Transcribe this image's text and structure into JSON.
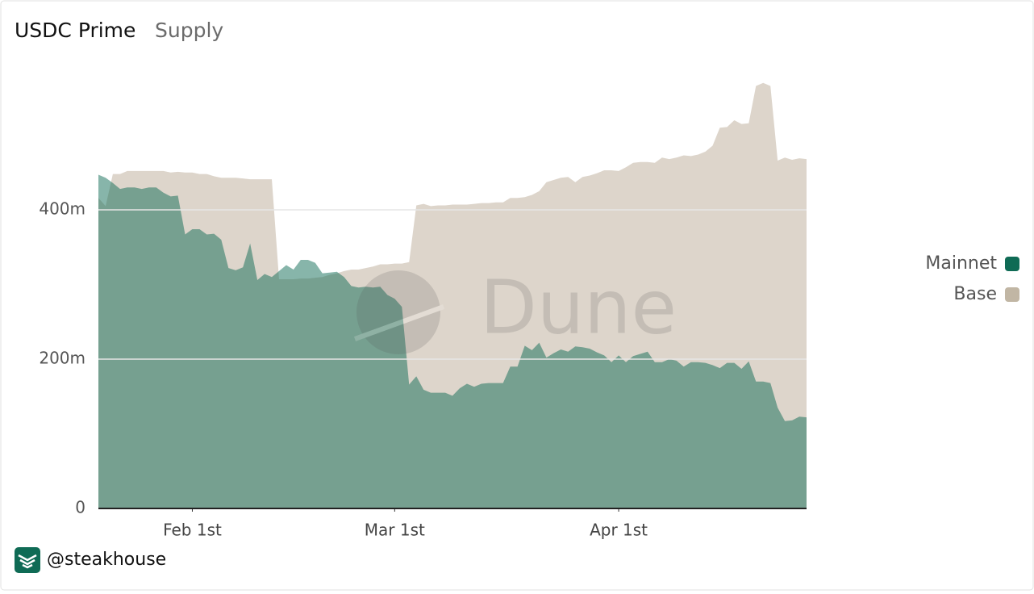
{
  "chart_data": {
    "type": "area",
    "title": "USDC Prime",
    "subtitle": "Supply",
    "watermark": "Dune",
    "footer": "@steakhouse",
    "legend": "right",
    "grid": true,
    "x": [
      "01-19",
      "01-20",
      "01-21",
      "01-22",
      "01-23",
      "01-24",
      "01-25",
      "01-26",
      "01-27",
      "01-28",
      "01-29",
      "01-30",
      "01-31",
      "02-01",
      "02-02",
      "02-03",
      "02-04",
      "02-05",
      "02-06",
      "02-07",
      "02-08",
      "02-09",
      "02-10",
      "02-11",
      "02-12",
      "02-13",
      "02-14",
      "02-15",
      "02-16",
      "02-17",
      "02-18",
      "02-19",
      "02-20",
      "02-21",
      "02-22",
      "02-23",
      "02-24",
      "02-25",
      "02-26",
      "02-27",
      "02-28",
      "03-01",
      "03-02",
      "03-03",
      "03-04",
      "03-05",
      "03-06",
      "03-07",
      "03-08",
      "03-09",
      "03-10",
      "03-11",
      "03-12",
      "03-13",
      "03-14",
      "03-15",
      "03-16",
      "03-17",
      "03-18",
      "03-19",
      "03-20",
      "03-21",
      "03-22",
      "03-23",
      "03-24",
      "03-25",
      "03-26",
      "03-27",
      "03-28",
      "03-29",
      "03-30",
      "03-31",
      "04-01",
      "04-02",
      "04-03",
      "04-04",
      "04-05",
      "04-06",
      "04-07",
      "04-08",
      "04-09",
      "04-10",
      "04-11",
      "04-12",
      "04-13",
      "04-14",
      "04-15",
      "04-16",
      "04-17",
      "04-18",
      "04-19",
      "04-20",
      "04-21",
      "04-22",
      "04-23",
      "04-24",
      "04-25",
      "04-26",
      "04-27"
    ],
    "xticks": [
      {
        "value": "02-01",
        "label": "Feb 1st"
      },
      {
        "value": "03-01",
        "label": "Mar 1st"
      },
      {
        "value": "04-01",
        "label": "Apr 1st"
      }
    ],
    "ylim": [
      0,
      600
    ],
    "yticks": [
      {
        "value": 0,
        "label": "0"
      },
      {
        "value": 200,
        "label": "200m"
      },
      {
        "value": 400,
        "label": "400m"
      }
    ],
    "series": [
      {
        "name": "Base",
        "color": "#ddd5cb",
        "legend_color": "#c1b6a4",
        "values": [
          416,
          405,
          448,
          448,
          452,
          452,
          452,
          452,
          452,
          452,
          450,
          451,
          450,
          450,
          448,
          448,
          445,
          443,
          443,
          443,
          442,
          441,
          441,
          441,
          441,
          307,
          307,
          307,
          308,
          308,
          309,
          310,
          313,
          315,
          318,
          320,
          320,
          322,
          324,
          327,
          327,
          328,
          328,
          330,
          406,
          408,
          405,
          406,
          406,
          407,
          407,
          407,
          408,
          409,
          409,
          410,
          410,
          416,
          416,
          417,
          420,
          425,
          437,
          440,
          443,
          444,
          437,
          444,
          446,
          449,
          453,
          453,
          452,
          457,
          463,
          464,
          464,
          463,
          470,
          468,
          470,
          473,
          472,
          474,
          478,
          486,
          510,
          511,
          520,
          515,
          516,
          566,
          570,
          566,
          466,
          470,
          467,
          469,
          468
        ]
      },
      {
        "name": "Mainnet",
        "color": "#0f6b55",
        "legend_color": "#0f6b55",
        "values": [
          447,
          443,
          436,
          428,
          430,
          430,
          428,
          430,
          430,
          423,
          418,
          419,
          367,
          374,
          374,
          367,
          368,
          360,
          322,
          319,
          323,
          355,
          306,
          314,
          310,
          318,
          326,
          320,
          333,
          333,
          329,
          315,
          316,
          317,
          310,
          298,
          296,
          297,
          296,
          297,
          286,
          281,
          270,
          166,
          177,
          159,
          155,
          155,
          155,
          151,
          161,
          167,
          163,
          167,
          168,
          168,
          168,
          190,
          190,
          218,
          212,
          222,
          202,
          208,
          213,
          210,
          217,
          216,
          214,
          209,
          205,
          196,
          205,
          196,
          204,
          207,
          210,
          196,
          196,
          200,
          198,
          190,
          196,
          196,
          195,
          192,
          188,
          195,
          195,
          187,
          197,
          170,
          170,
          168,
          135,
          117,
          118,
          123,
          122
        ]
      }
    ]
  }
}
